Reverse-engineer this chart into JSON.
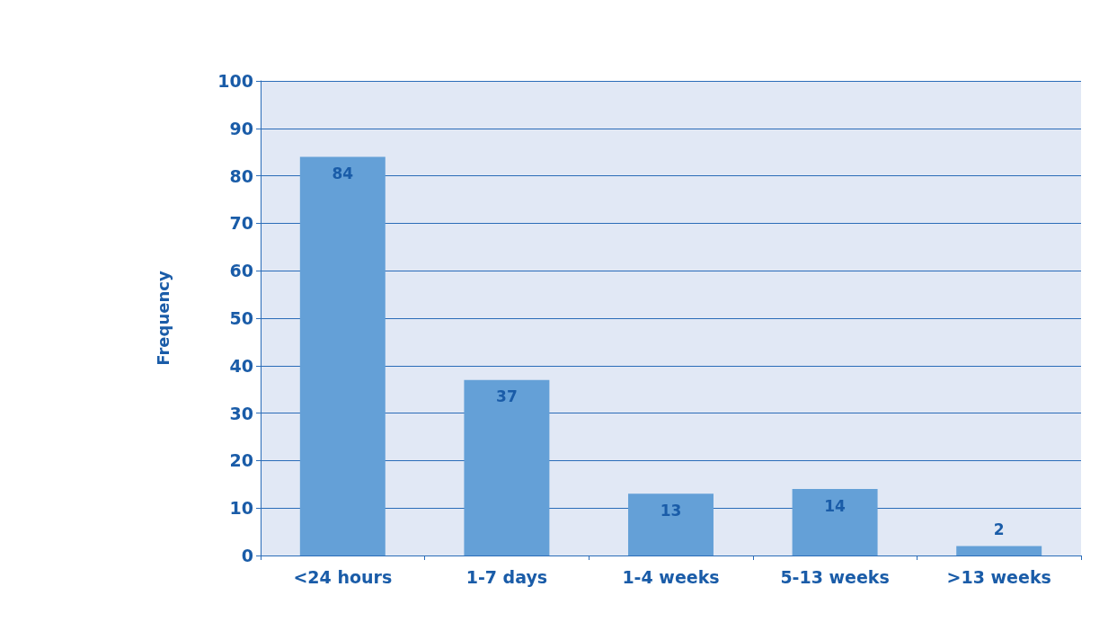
{
  "chart_data": {
    "type": "bar",
    "ylabel": "Frequency",
    "categories": [
      "<24 hours",
      "1-7 days",
      "1-4 weeks",
      "5-13 weeks",
      ">13 weeks"
    ],
    "values": [
      84,
      37,
      13,
      14,
      2
    ],
    "color": "#64a0d7",
    "ylim": [
      0,
      100
    ],
    "yticks": [
      0,
      10,
      20,
      30,
      40,
      50,
      60,
      70,
      80,
      90,
      100
    ],
    "grid": true,
    "data_labels": true
  }
}
